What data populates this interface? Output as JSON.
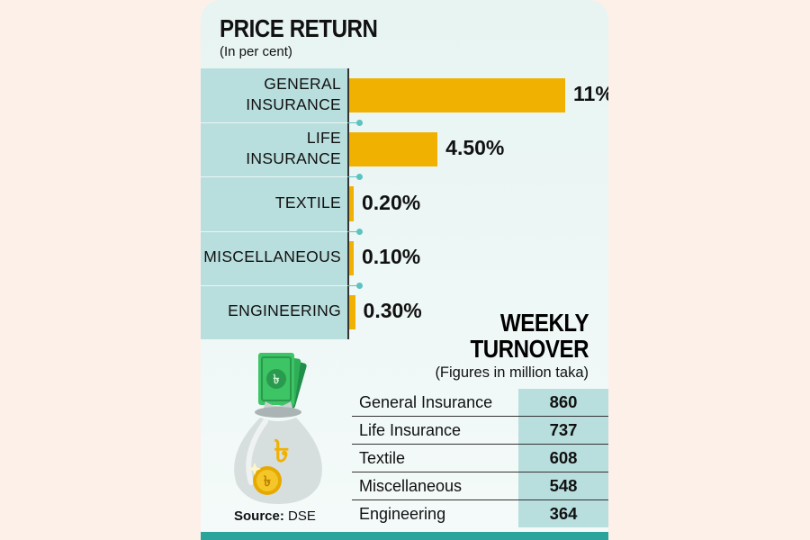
{
  "chart_data": [
    {
      "type": "bar",
      "title": "PRICE RETURN",
      "subtitle": "(In per cent)",
      "categories": [
        "GENERAL INSURANCE",
        "LIFE INSURANCE",
        "TEXTILE",
        "MISCELLANEOUS",
        "ENGINEERING"
      ],
      "category_lines": [
        [
          "GENERAL",
          "INSURANCE"
        ],
        [
          "LIFE",
          "INSURANCE"
        ],
        [
          "TEXTILE"
        ],
        [
          "MISCELLANEOUS"
        ],
        [
          "ENGINEERING"
        ]
      ],
      "values": [
        11,
        4.5,
        0.2,
        0.1,
        0.3
      ],
      "value_labels": [
        "11%",
        "4.50%",
        "0.20%",
        "0.10%",
        "0.30%"
      ],
      "orientation": "horizontal",
      "bar_color": "#f0b100",
      "xlim": [
        0,
        12
      ]
    },
    {
      "type": "table",
      "title_lines": [
        "WEEKLY",
        "TURNOVER"
      ],
      "subtitle": "(Figures in million taka)",
      "rows": [
        {
          "name": "General Insurance",
          "value": "860"
        },
        {
          "name": "Life Insurance",
          "value": "737"
        },
        {
          "name": "Textile",
          "value": "608"
        },
        {
          "name": "Miscellaneous",
          "value": "548"
        },
        {
          "name": "Engineering",
          "value": "364"
        }
      ]
    }
  ],
  "source": {
    "label": "Source:",
    "text": "DSE"
  },
  "icons": [
    "money-bag-icon",
    "taka-banknote-icon",
    "taka-coin-icon"
  ],
  "colors": {
    "accent": "#f0b100",
    "panel": "#b8dedd",
    "teal": "#2aa39a",
    "background": "#fdf0e9"
  }
}
